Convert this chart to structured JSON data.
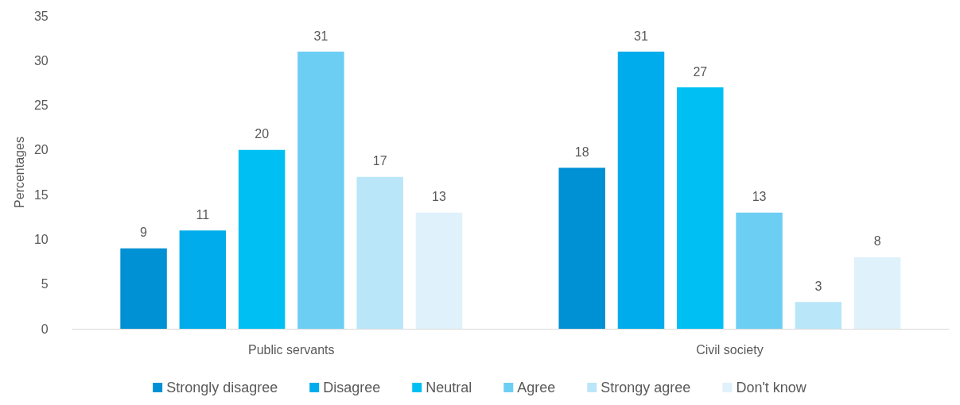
{
  "chart_data": {
    "type": "bar",
    "ylabel": "Percentages",
    "categories": [
      "Public servants",
      "Civil society"
    ],
    "series": [
      {
        "name": "Strongly disagree",
        "color": "#0090d4",
        "values": [
          9,
          18
        ]
      },
      {
        "name": "Disagree",
        "color": "#00aceb",
        "values": [
          11,
          31
        ]
      },
      {
        "name": "Neutral",
        "color": "#00bff2",
        "values": [
          20,
          27
        ]
      },
      {
        "name": "Agree",
        "color": "#6dcef4",
        "values": [
          31,
          13
        ]
      },
      {
        "name": "Strongy agree",
        "color": "#bae6f9",
        "values": [
          17,
          3
        ]
      },
      {
        "name": "Don't know",
        "color": "#dff1fb",
        "values": [
          13,
          8
        ]
      }
    ],
    "ylim": [
      0,
      35
    ],
    "yticks": [
      0,
      5,
      10,
      15,
      20,
      25,
      30,
      35
    ],
    "grid": false,
    "legend": "bottom",
    "data_labels": true
  }
}
